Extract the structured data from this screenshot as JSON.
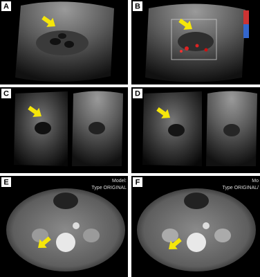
{
  "panels": [
    {
      "label": "A"
    },
    {
      "label": "B"
    },
    {
      "label": "C"
    },
    {
      "label": "D"
    },
    {
      "label": "E",
      "texts": [
        "Model:",
        "Type ORIGINAL"
      ]
    },
    {
      "label": "F",
      "texts": [
        "Mo",
        "Type ORIGINAL/"
      ]
    }
  ]
}
